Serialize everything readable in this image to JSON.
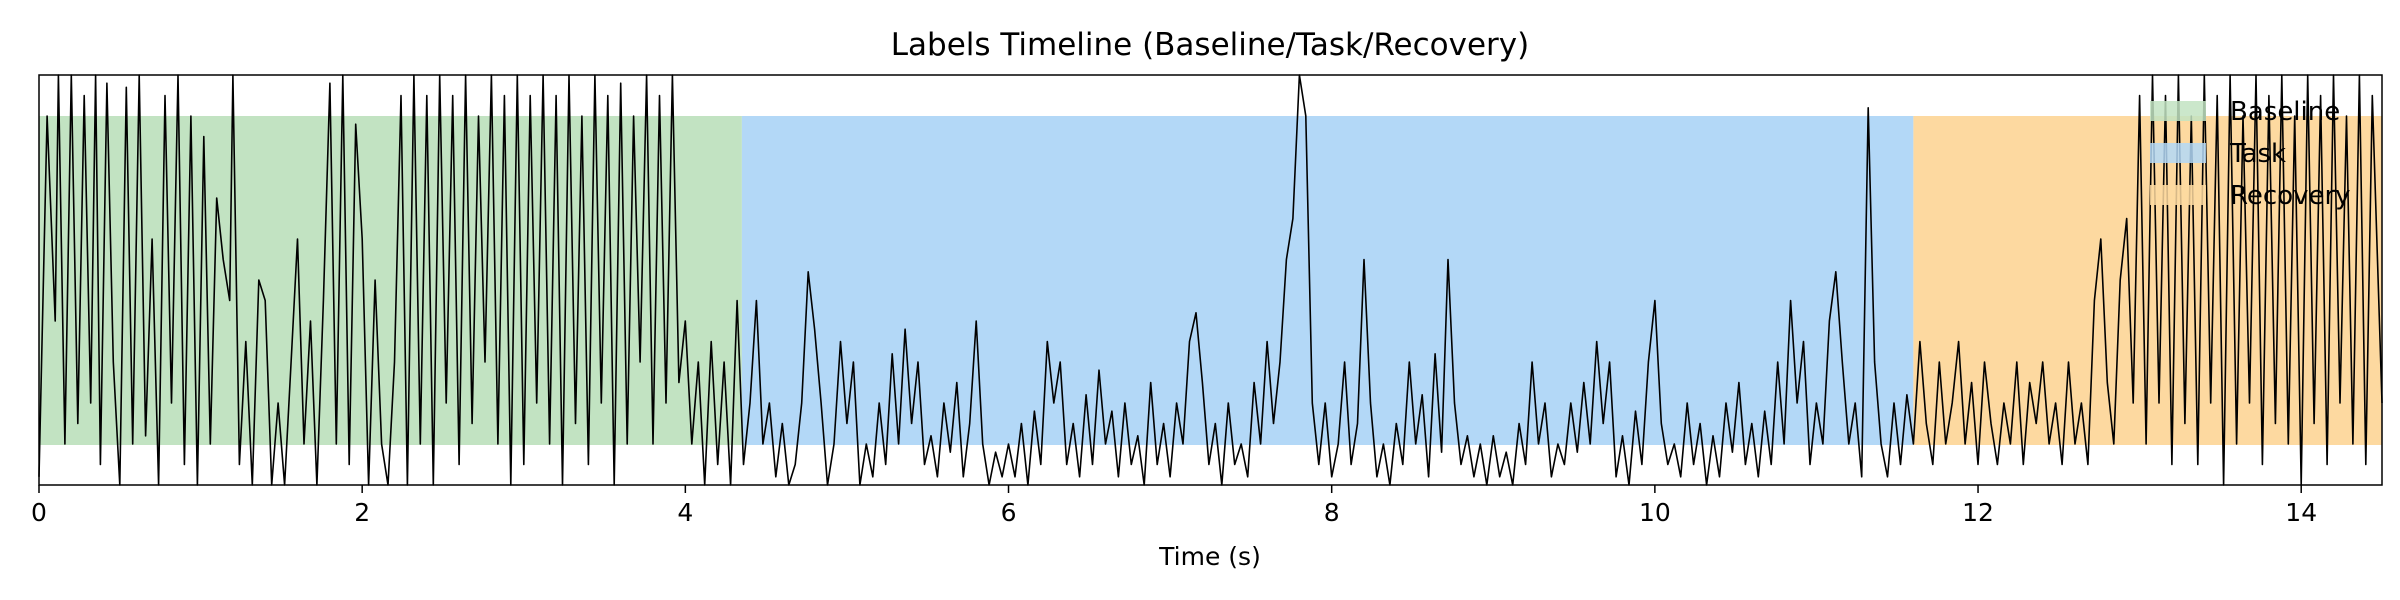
{
  "chart_data": {
    "type": "area",
    "title": "Labels Timeline (Baseline/Task/Recovery)",
    "xlabel": "Time (s)",
    "ylabel": "",
    "xlim": [
      0,
      14.5
    ],
    "x_ticks": [
      0,
      2,
      4,
      6,
      8,
      10,
      12,
      14
    ],
    "y_ticks_visible": false,
    "grid": false,
    "legend_position": "top-right",
    "segments": [
      {
        "name": "Baseline",
        "start": 0,
        "end": 4.35,
        "color": "#c2e3c2"
      },
      {
        "name": "Task",
        "start": 4.35,
        "end": 11.6,
        "color": "#b3d8f7"
      },
      {
        "name": "Recovery",
        "start": 11.6,
        "end": 14.5,
        "color": "#fdd9a0"
      }
    ],
    "legend": [
      {
        "label": "Baseline",
        "color": "#c2e3c2"
      },
      {
        "label": "Task",
        "color": "#b3d8f7"
      },
      {
        "label": "Recovery",
        "color": "#fdd9a0"
      }
    ],
    "signal": {
      "color": "#000000",
      "description_level": "raw trace of many oscillating samples in data units (0 = bottom, 1 = top of axes)",
      "points": [
        [
          0.0,
          0.02
        ],
        [
          0.05,
          0.9
        ],
        [
          0.1,
          0.4
        ],
        [
          0.12,
          1.0
        ],
        [
          0.16,
          0.1
        ],
        [
          0.2,
          1.0
        ],
        [
          0.24,
          0.15
        ],
        [
          0.28,
          0.95
        ],
        [
          0.32,
          0.2
        ],
        [
          0.35,
          1.0
        ],
        [
          0.38,
          0.05
        ],
        [
          0.42,
          0.98
        ],
        [
          0.46,
          0.3
        ],
        [
          0.5,
          0.0
        ],
        [
          0.54,
          0.97
        ],
        [
          0.58,
          0.1
        ],
        [
          0.62,
          1.0
        ],
        [
          0.66,
          0.12
        ],
        [
          0.7,
          0.6
        ],
        [
          0.74,
          0.0
        ],
        [
          0.78,
          0.95
        ],
        [
          0.82,
          0.2
        ],
        [
          0.86,
          1.0
        ],
        [
          0.9,
          0.05
        ],
        [
          0.94,
          0.9
        ],
        [
          0.98,
          0.0
        ],
        [
          1.02,
          0.85
        ],
        [
          1.06,
          0.1
        ],
        [
          1.1,
          0.7
        ],
        [
          1.14,
          0.55
        ],
        [
          1.18,
          0.45
        ],
        [
          1.2,
          1.0
        ],
        [
          1.24,
          0.05
        ],
        [
          1.28,
          0.35
        ],
        [
          1.32,
          0.0
        ],
        [
          1.36,
          0.5
        ],
        [
          1.4,
          0.45
        ],
        [
          1.44,
          0.0
        ],
        [
          1.48,
          0.2
        ],
        [
          1.52,
          0.0
        ],
        [
          1.56,
          0.3
        ],
        [
          1.6,
          0.6
        ],
        [
          1.64,
          0.1
        ],
        [
          1.68,
          0.4
        ],
        [
          1.72,
          0.0
        ],
        [
          1.76,
          0.45
        ],
        [
          1.8,
          0.98
        ],
        [
          1.84,
          0.1
        ],
        [
          1.88,
          1.0
        ],
        [
          1.92,
          0.05
        ],
        [
          1.96,
          0.88
        ],
        [
          2.0,
          0.6
        ],
        [
          2.04,
          0.0
        ],
        [
          2.08,
          0.5
        ],
        [
          2.12,
          0.1
        ],
        [
          2.16,
          0.0
        ],
        [
          2.2,
          0.3
        ],
        [
          2.24,
          0.95
        ],
        [
          2.28,
          0.0
        ],
        [
          2.32,
          1.0
        ],
        [
          2.36,
          0.1
        ],
        [
          2.4,
          0.95
        ],
        [
          2.44,
          0.0
        ],
        [
          2.48,
          1.0
        ],
        [
          2.52,
          0.2
        ],
        [
          2.56,
          0.95
        ],
        [
          2.6,
          0.05
        ],
        [
          2.64,
          1.0
        ],
        [
          2.68,
          0.15
        ],
        [
          2.72,
          0.9
        ],
        [
          2.76,
          0.3
        ],
        [
          2.8,
          1.0
        ],
        [
          2.84,
          0.1
        ],
        [
          2.88,
          0.95
        ],
        [
          2.92,
          0.0
        ],
        [
          2.96,
          1.0
        ],
        [
          3.0,
          0.05
        ],
        [
          3.04,
          0.95
        ],
        [
          3.08,
          0.2
        ],
        [
          3.12,
          1.0
        ],
        [
          3.16,
          0.1
        ],
        [
          3.2,
          0.95
        ],
        [
          3.24,
          0.0
        ],
        [
          3.28,
          1.0
        ],
        [
          3.32,
          0.15
        ],
        [
          3.36,
          0.9
        ],
        [
          3.4,
          0.05
        ],
        [
          3.44,
          1.0
        ],
        [
          3.48,
          0.2
        ],
        [
          3.52,
          0.95
        ],
        [
          3.56,
          0.0
        ],
        [
          3.6,
          0.98
        ],
        [
          3.64,
          0.1
        ],
        [
          3.68,
          0.9
        ],
        [
          3.72,
          0.3
        ],
        [
          3.76,
          1.0
        ],
        [
          3.8,
          0.1
        ],
        [
          3.84,
          0.95
        ],
        [
          3.88,
          0.2
        ],
        [
          3.92,
          1.0
        ],
        [
          3.96,
          0.25
        ],
        [
          4.0,
          0.4
        ],
        [
          4.04,
          0.1
        ],
        [
          4.08,
          0.3
        ],
        [
          4.12,
          0.0
        ],
        [
          4.16,
          0.35
        ],
        [
          4.2,
          0.05
        ],
        [
          4.24,
          0.3
        ],
        [
          4.28,
          0.0
        ],
        [
          4.32,
          0.45
        ],
        [
          4.36,
          0.05
        ],
        [
          4.4,
          0.2
        ],
        [
          4.44,
          0.45
        ],
        [
          4.48,
          0.1
        ],
        [
          4.52,
          0.2
        ],
        [
          4.56,
          0.02
        ],
        [
          4.6,
          0.15
        ],
        [
          4.64,
          0.0
        ],
        [
          4.68,
          0.05
        ],
        [
          4.72,
          0.2
        ],
        [
          4.76,
          0.52
        ],
        [
          4.8,
          0.38
        ],
        [
          4.84,
          0.2
        ],
        [
          4.88,
          0.0
        ],
        [
          4.92,
          0.1
        ],
        [
          4.96,
          0.35
        ],
        [
          5.0,
          0.15
        ],
        [
          5.04,
          0.3
        ],
        [
          5.08,
          0.0
        ],
        [
          5.12,
          0.1
        ],
        [
          5.16,
          0.02
        ],
        [
          5.2,
          0.2
        ],
        [
          5.24,
          0.05
        ],
        [
          5.28,
          0.32
        ],
        [
          5.32,
          0.1
        ],
        [
          5.36,
          0.38
        ],
        [
          5.4,
          0.15
        ],
        [
          5.44,
          0.3
        ],
        [
          5.48,
          0.05
        ],
        [
          5.52,
          0.12
        ],
        [
          5.56,
          0.02
        ],
        [
          5.6,
          0.2
        ],
        [
          5.64,
          0.08
        ],
        [
          5.68,
          0.25
        ],
        [
          5.72,
          0.02
        ],
        [
          5.76,
          0.15
        ],
        [
          5.8,
          0.4
        ],
        [
          5.84,
          0.1
        ],
        [
          5.88,
          0.0
        ],
        [
          5.92,
          0.08
        ],
        [
          5.96,
          0.02
        ],
        [
          6.0,
          0.1
        ],
        [
          6.04,
          0.02
        ],
        [
          6.08,
          0.15
        ],
        [
          6.12,
          0.0
        ],
        [
          6.16,
          0.18
        ],
        [
          6.2,
          0.05
        ],
        [
          6.24,
          0.35
        ],
        [
          6.28,
          0.2
        ],
        [
          6.32,
          0.3
        ],
        [
          6.36,
          0.05
        ],
        [
          6.4,
          0.15
        ],
        [
          6.44,
          0.02
        ],
        [
          6.48,
          0.22
        ],
        [
          6.52,
          0.05
        ],
        [
          6.56,
          0.28
        ],
        [
          6.6,
          0.1
        ],
        [
          6.64,
          0.18
        ],
        [
          6.68,
          0.02
        ],
        [
          6.72,
          0.2
        ],
        [
          6.76,
          0.05
        ],
        [
          6.8,
          0.12
        ],
        [
          6.84,
          0.0
        ],
        [
          6.88,
          0.25
        ],
        [
          6.92,
          0.05
        ],
        [
          6.96,
          0.15
        ],
        [
          7.0,
          0.02
        ],
        [
          7.04,
          0.2
        ],
        [
          7.08,
          0.1
        ],
        [
          7.12,
          0.35
        ],
        [
          7.16,
          0.42
        ],
        [
          7.2,
          0.25
        ],
        [
          7.24,
          0.05
        ],
        [
          7.28,
          0.15
        ],
        [
          7.32,
          0.0
        ],
        [
          7.36,
          0.2
        ],
        [
          7.4,
          0.05
        ],
        [
          7.44,
          0.1
        ],
        [
          7.48,
          0.02
        ],
        [
          7.52,
          0.25
        ],
        [
          7.56,
          0.1
        ],
        [
          7.6,
          0.35
        ],
        [
          7.64,
          0.15
        ],
        [
          7.68,
          0.3
        ],
        [
          7.72,
          0.55
        ],
        [
          7.76,
          0.65
        ],
        [
          7.8,
          1.0
        ],
        [
          7.84,
          0.9
        ],
        [
          7.88,
          0.2
        ],
        [
          7.92,
          0.05
        ],
        [
          7.96,
          0.2
        ],
        [
          8.0,
          0.02
        ],
        [
          8.04,
          0.1
        ],
        [
          8.08,
          0.3
        ],
        [
          8.12,
          0.05
        ],
        [
          8.16,
          0.15
        ],
        [
          8.2,
          0.55
        ],
        [
          8.24,
          0.2
        ],
        [
          8.28,
          0.02
        ],
        [
          8.32,
          0.1
        ],
        [
          8.36,
          0.0
        ],
        [
          8.4,
          0.15
        ],
        [
          8.44,
          0.05
        ],
        [
          8.48,
          0.3
        ],
        [
          8.52,
          0.1
        ],
        [
          8.56,
          0.22
        ],
        [
          8.6,
          0.02
        ],
        [
          8.64,
          0.32
        ],
        [
          8.68,
          0.08
        ],
        [
          8.72,
          0.55
        ],
        [
          8.76,
          0.2
        ],
        [
          8.8,
          0.05
        ],
        [
          8.84,
          0.12
        ],
        [
          8.88,
          0.02
        ],
        [
          8.92,
          0.1
        ],
        [
          8.96,
          0.0
        ],
        [
          9.0,
          0.12
        ],
        [
          9.04,
          0.02
        ],
        [
          9.08,
          0.08
        ],
        [
          9.12,
          0.0
        ],
        [
          9.16,
          0.15
        ],
        [
          9.2,
          0.05
        ],
        [
          9.24,
          0.3
        ],
        [
          9.28,
          0.1
        ],
        [
          9.32,
          0.2
        ],
        [
          9.36,
          0.02
        ],
        [
          9.4,
          0.1
        ],
        [
          9.44,
          0.05
        ],
        [
          9.48,
          0.2
        ],
        [
          9.52,
          0.08
        ],
        [
          9.56,
          0.25
        ],
        [
          9.6,
          0.1
        ],
        [
          9.64,
          0.35
        ],
        [
          9.68,
          0.15
        ],
        [
          9.72,
          0.3
        ],
        [
          9.76,
          0.02
        ],
        [
          9.8,
          0.12
        ],
        [
          9.84,
          0.0
        ],
        [
          9.88,
          0.18
        ],
        [
          9.92,
          0.05
        ],
        [
          9.96,
          0.3
        ],
        [
          10.0,
          0.45
        ],
        [
          10.04,
          0.15
        ],
        [
          10.08,
          0.05
        ],
        [
          10.12,
          0.1
        ],
        [
          10.16,
          0.02
        ],
        [
          10.2,
          0.2
        ],
        [
          10.24,
          0.05
        ],
        [
          10.28,
          0.15
        ],
        [
          10.32,
          0.0
        ],
        [
          10.36,
          0.12
        ],
        [
          10.4,
          0.02
        ],
        [
          10.44,
          0.2
        ],
        [
          10.48,
          0.08
        ],
        [
          10.52,
          0.25
        ],
        [
          10.56,
          0.05
        ],
        [
          10.6,
          0.15
        ],
        [
          10.64,
          0.02
        ],
        [
          10.68,
          0.18
        ],
        [
          10.72,
          0.05
        ],
        [
          10.76,
          0.3
        ],
        [
          10.8,
          0.1
        ],
        [
          10.84,
          0.45
        ],
        [
          10.88,
          0.2
        ],
        [
          10.92,
          0.35
        ],
        [
          10.96,
          0.05
        ],
        [
          11.0,
          0.2
        ],
        [
          11.04,
          0.1
        ],
        [
          11.08,
          0.4
        ],
        [
          11.12,
          0.52
        ],
        [
          11.16,
          0.3
        ],
        [
          11.2,
          0.1
        ],
        [
          11.24,
          0.2
        ],
        [
          11.28,
          0.02
        ],
        [
          11.32,
          0.92
        ],
        [
          11.36,
          0.3
        ],
        [
          11.4,
          0.1
        ],
        [
          11.44,
          0.02
        ],
        [
          11.48,
          0.2
        ],
        [
          11.52,
          0.05
        ],
        [
          11.56,
          0.22
        ],
        [
          11.6,
          0.1
        ],
        [
          11.64,
          0.35
        ],
        [
          11.68,
          0.15
        ],
        [
          11.72,
          0.05
        ],
        [
          11.76,
          0.3
        ],
        [
          11.8,
          0.1
        ],
        [
          11.84,
          0.2
        ],
        [
          11.88,
          0.35
        ],
        [
          11.92,
          0.1
        ],
        [
          11.96,
          0.25
        ],
        [
          12.0,
          0.05
        ],
        [
          12.04,
          0.3
        ],
        [
          12.08,
          0.15
        ],
        [
          12.12,
          0.05
        ],
        [
          12.16,
          0.2
        ],
        [
          12.2,
          0.1
        ],
        [
          12.24,
          0.3
        ],
        [
          12.28,
          0.05
        ],
        [
          12.32,
          0.25
        ],
        [
          12.36,
          0.15
        ],
        [
          12.4,
          0.3
        ],
        [
          12.44,
          0.1
        ],
        [
          12.48,
          0.2
        ],
        [
          12.52,
          0.05
        ],
        [
          12.56,
          0.3
        ],
        [
          12.6,
          0.1
        ],
        [
          12.64,
          0.2
        ],
        [
          12.68,
          0.05
        ],
        [
          12.72,
          0.45
        ],
        [
          12.76,
          0.6
        ],
        [
          12.8,
          0.25
        ],
        [
          12.84,
          0.1
        ],
        [
          12.88,
          0.5
        ],
        [
          12.92,
          0.65
        ],
        [
          12.96,
          0.2
        ],
        [
          13.0,
          0.95
        ],
        [
          13.04,
          0.1
        ],
        [
          13.08,
          1.0
        ],
        [
          13.12,
          0.2
        ],
        [
          13.16,
          0.95
        ],
        [
          13.2,
          0.05
        ],
        [
          13.24,
          1.0
        ],
        [
          13.28,
          0.15
        ],
        [
          13.32,
          0.9
        ],
        [
          13.36,
          0.05
        ],
        [
          13.4,
          1.0
        ],
        [
          13.44,
          0.2
        ],
        [
          13.48,
          0.95
        ],
        [
          13.52,
          0.0
        ],
        [
          13.56,
          1.0
        ],
        [
          13.6,
          0.1
        ],
        [
          13.64,
          0.9
        ],
        [
          13.68,
          0.2
        ],
        [
          13.72,
          1.0
        ],
        [
          13.76,
          0.05
        ],
        [
          13.8,
          0.95
        ],
        [
          13.84,
          0.15
        ],
        [
          13.88,
          1.0
        ],
        [
          13.92,
          0.1
        ],
        [
          13.96,
          0.9
        ],
        [
          14.0,
          0.0
        ],
        [
          14.04,
          1.0
        ],
        [
          14.08,
          0.15
        ],
        [
          14.12,
          0.95
        ],
        [
          14.16,
          0.05
        ],
        [
          14.2,
          1.0
        ],
        [
          14.24,
          0.2
        ],
        [
          14.28,
          0.9
        ],
        [
          14.32,
          0.1
        ],
        [
          14.36,
          1.0
        ],
        [
          14.4,
          0.05
        ],
        [
          14.44,
          0.95
        ],
        [
          14.5,
          0.2
        ]
      ]
    }
  }
}
